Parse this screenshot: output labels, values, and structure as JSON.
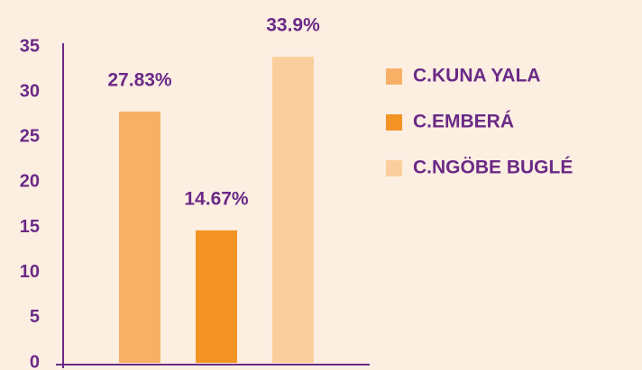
{
  "chart_data": {
    "type": "bar",
    "categories": [
      null
    ],
    "series": [
      {
        "name": "C.KUNA YALA",
        "color": "#f8b066",
        "values": [
          27.83
        ],
        "value_labels": [
          "27.83%"
        ]
      },
      {
        "name": "C.EMBERÁ",
        "color": "#f39324",
        "values": [
          14.67
        ],
        "value_labels": [
          "14.67%"
        ]
      },
      {
        "name": "C.NGÖBE BUGLÉ",
        "color": "#fbcf9d",
        "values": [
          33.9
        ],
        "value_labels": [
          "33.9%"
        ]
      }
    ],
    "ylim": [
      0,
      35
    ],
    "yticks": [
      0,
      5,
      10,
      15,
      20,
      25,
      30,
      35
    ],
    "grid": false,
    "legend": "right"
  }
}
